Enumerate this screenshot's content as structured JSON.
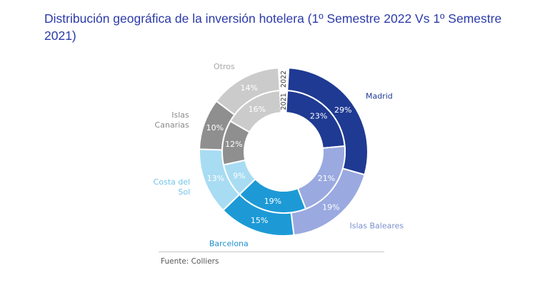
{
  "chart_data": {
    "type": "donut",
    "title": "Distribución geográfica de la inversión hotelera (1º Semestre 2022 Vs 1º Semestre 2021)",
    "source": "Fuente: Colliers",
    "year_labels": {
      "outer": "2022",
      "inner": "2021"
    },
    "categories": [
      "Madrid",
      "Islas Baleares",
      "Barcelona",
      "Costa del Sol",
      "Islas Canarias",
      "Otros"
    ],
    "category_label_lines": [
      [
        "Madrid"
      ],
      [
        "Islas Baleares"
      ],
      [
        "Barcelona"
      ],
      [
        "Costa del",
        "Sol"
      ],
      [
        "Islas",
        "Canarias"
      ],
      [
        "Otros"
      ]
    ],
    "category_label_colors": [
      "#1f3a93",
      "#7a8fcf",
      "#1d8fcf",
      "#6fc3ea",
      "#8a8a8a",
      "#a8a8a8"
    ],
    "colors": [
      "#1f3a93",
      "#9aa9e0",
      "#1d9ad6",
      "#a8dcf3",
      "#8f8f8f",
      "#cbcbcb"
    ],
    "series": [
      {
        "name": "2022",
        "ring": "outer",
        "values": [
          29,
          19,
          15,
          13,
          10,
          14
        ],
        "labels": [
          "29%",
          "19%",
          "15%",
          "13%",
          "10%",
          "14%"
        ]
      },
      {
        "name": "2021",
        "ring": "inner",
        "values": [
          23,
          21,
          19,
          9,
          12,
          16
        ],
        "labels": [
          "23%",
          "21%",
          "19%",
          "9%",
          "12%",
          "16%"
        ]
      }
    ]
  }
}
